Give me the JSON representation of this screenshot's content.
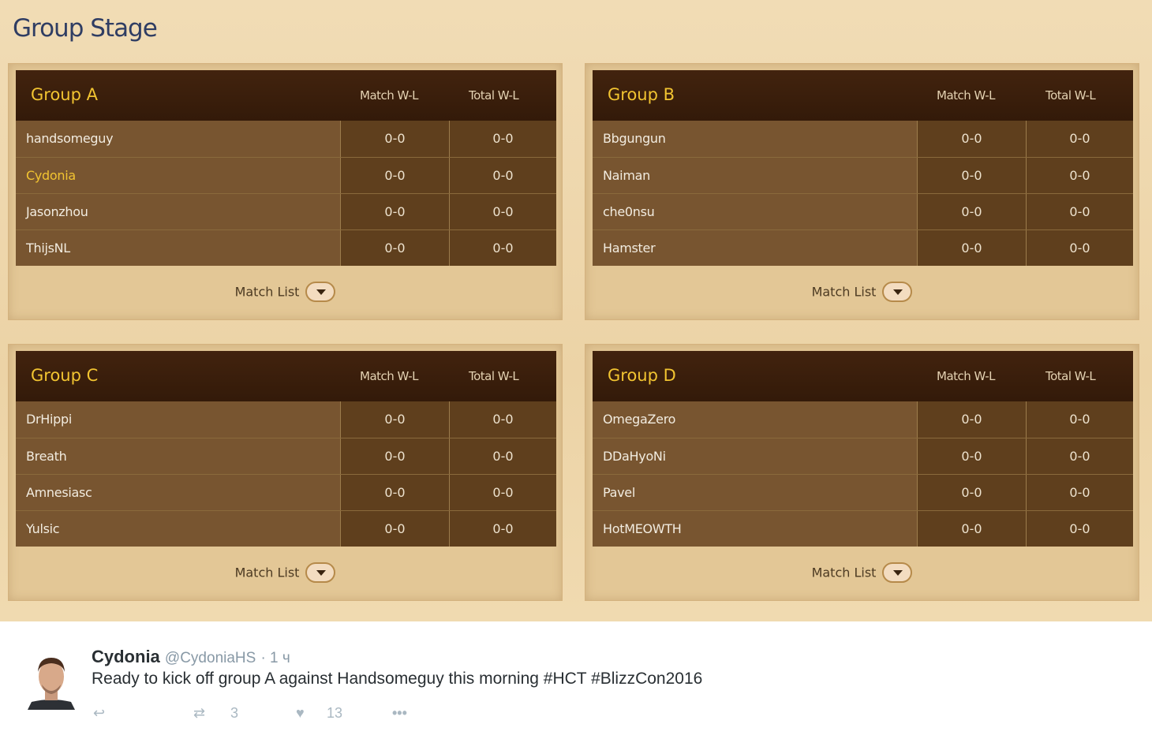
{
  "page_title": "Group Stage",
  "columns": {
    "match": "Match W-L",
    "total": "Total W-L"
  },
  "match_list_label": "Match List",
  "groups": [
    {
      "name": "Group A",
      "players": [
        {
          "name": "handsomeguy",
          "match": "0-0",
          "total": "0-0"
        },
        {
          "name": "Cydonia",
          "match": "0-0",
          "total": "0-0",
          "highlighted": true
        },
        {
          "name": "Jasonzhou",
          "match": "0-0",
          "total": "0-0"
        },
        {
          "name": "ThijsNL",
          "match": "0-0",
          "total": "0-0"
        }
      ]
    },
    {
      "name": "Group B",
      "players": [
        {
          "name": "Bbgungun",
          "match": "0-0",
          "total": "0-0"
        },
        {
          "name": "Naiman",
          "match": "0-0",
          "total": "0-0"
        },
        {
          "name": "che0nsu",
          "match": "0-0",
          "total": "0-0"
        },
        {
          "name": "Hamster",
          "match": "0-0",
          "total": "0-0"
        }
      ]
    },
    {
      "name": "Group C",
      "players": [
        {
          "name": "DrHippi",
          "match": "0-0",
          "total": "0-0"
        },
        {
          "name": "Breath",
          "match": "0-0",
          "total": "0-0"
        },
        {
          "name": "Amnesiasc",
          "match": "0-0",
          "total": "0-0"
        },
        {
          "name": "Yulsic",
          "match": "0-0",
          "total": "0-0"
        }
      ]
    },
    {
      "name": "Group D",
      "players": [
        {
          "name": "OmegaZero",
          "match": "0-0",
          "total": "0-0"
        },
        {
          "name": "DDaHyoNi",
          "match": "0-0",
          "total": "0-0"
        },
        {
          "name": "Pavel",
          "match": "0-0",
          "total": "0-0"
        },
        {
          "name": "HotMEOWTH",
          "match": "0-0",
          "total": "0-0"
        }
      ]
    }
  ],
  "tweet": {
    "name": "Cydonia",
    "handle": "@CydoniaHS",
    "time": "· 1 ч",
    "text": "Ready to kick off group A against Handsomeguy this morning #HCT #BlizzCon2016",
    "retweets": "3",
    "likes": "13"
  },
  "colors": {
    "accent": "#f2c431",
    "header_bg": "#3b1f0c",
    "title": "#2f3d63"
  }
}
